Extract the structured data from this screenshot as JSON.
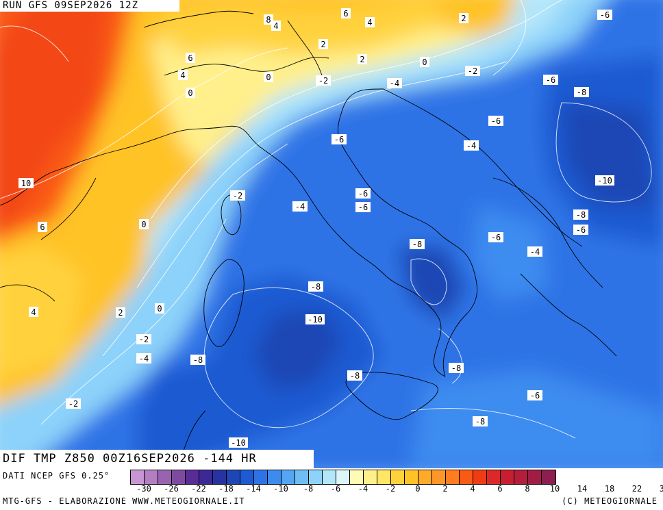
{
  "header": {
    "run_label": "RUN GFS 09SEP2026 12Z"
  },
  "map": {
    "variable_label": "DIF TMP Z850 00Z16SEP2026 -144 HR",
    "contour_labels": [
      "6",
      "4",
      "8",
      "4",
      "2",
      "-6",
      "6",
      "2",
      "4",
      "0",
      "2",
      "0",
      "-2",
      "-2",
      "0",
      "-2",
      "-4",
      "-6",
      "-8",
      "-6",
      "-4",
      "10",
      "-2",
      "-6",
      "-10",
      "6",
      "0",
      "-4",
      "-6",
      "-8",
      "-6",
      "-8",
      "-6",
      "-4",
      "-8",
      "4",
      "2",
      "0",
      "-10",
      "-2",
      "-4",
      "-8",
      "-8",
      "-8",
      "-6",
      "-2",
      "-8",
      "-10"
    ]
  },
  "legend": {
    "source_label": "DATI NCEP GFS 0.25°",
    "colors": [
      "#c896d2",
      "#b47ec3",
      "#9a63b0",
      "#7e4aa0",
      "#5a2d96",
      "#3c2896",
      "#2832a0",
      "#1e46b4",
      "#1e5ad2",
      "#2d73e6",
      "#3c8cf0",
      "#55a5f5",
      "#6ebef5",
      "#8cd2fa",
      "#b4e6fa",
      "#dcf5fa",
      "#fffab4",
      "#fff08c",
      "#ffe664",
      "#ffd23c",
      "#ffc328",
      "#ffaa28",
      "#ff9628",
      "#ff7d1e",
      "#fa5a14",
      "#f03c14",
      "#dc2828",
      "#c81e32",
      "#b41e3c",
      "#a01e46",
      "#8c1e50"
    ],
    "ticks": [
      "-30",
      "-26",
      "-22",
      "-18",
      "-14",
      "-10",
      "-8",
      "-6",
      "-4",
      "-2",
      "0",
      "2",
      "4",
      "6",
      "8",
      "10",
      "14",
      "18",
      "22",
      "30"
    ]
  },
  "footer": {
    "left": "MTG-GFS - ELABORAZIONE WWW.METEOGIORNALE.IT",
    "right": "(C) METEOGIORNALE"
  }
}
